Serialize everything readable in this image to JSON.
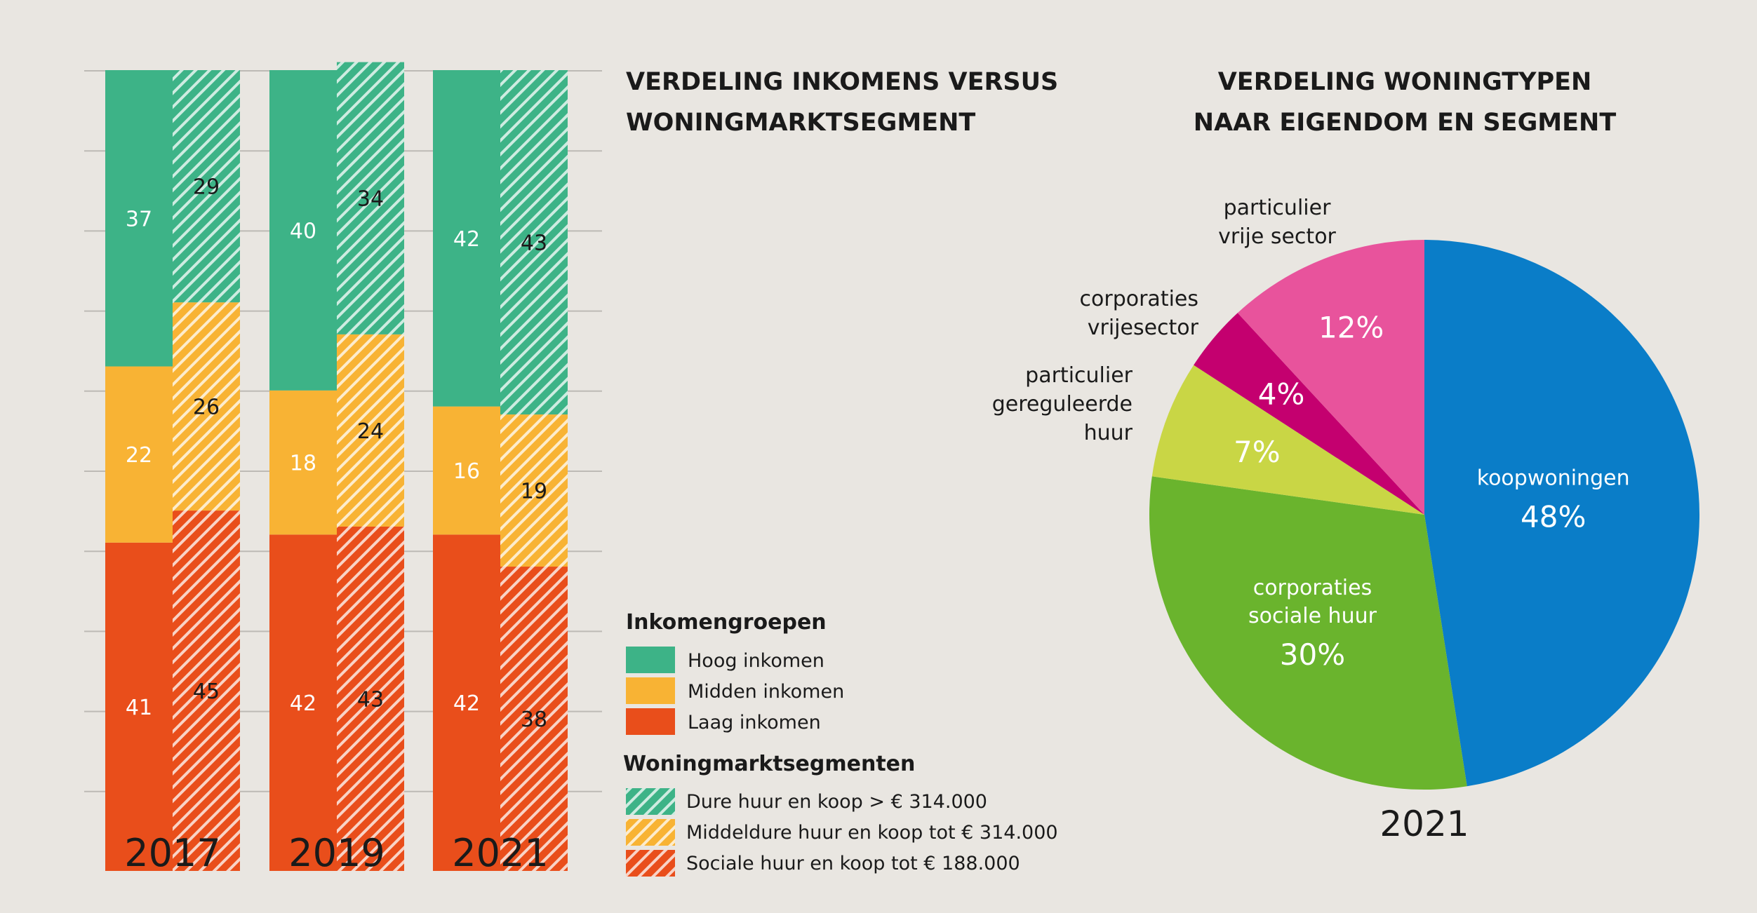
{
  "colors": {
    "background": "#e9e6e1",
    "hoog": "#3db387",
    "midden": "#f8b334",
    "laag": "#e94e1b",
    "grid": "#bdbab5",
    "koop": "#0a7dc8",
    "corp_sociaal": "#6ab42d",
    "part_gereguleerd": "#c9d645",
    "corp_vrije": "#c4006f",
    "part_vrije": "#e8539c"
  },
  "chart_data": [
    {
      "type": "bar",
      "title_lines": [
        "VERDELING INKOMENS VERSUS",
        "WONINGMARKTSEGMENT"
      ],
      "categories": [
        "2017",
        "2019",
        "2021"
      ],
      "stacked": true,
      "ylim": [
        0,
        100
      ],
      "grid": true,
      "groups": [
        {
          "name": "Inkomengroepen",
          "pattern": "solid",
          "series": [
            {
              "name": "Laag inkomen",
              "color_key": "laag",
              "values": [
                41,
                42,
                42
              ]
            },
            {
              "name": "Midden inkomen",
              "color_key": "midden",
              "values": [
                22,
                18,
                16
              ]
            },
            {
              "name": "Hoog inkomen",
              "color_key": "hoog",
              "values": [
                37,
                40,
                42
              ]
            }
          ]
        },
        {
          "name": "Woningmarktsegmenten",
          "pattern": "hatched",
          "series": [
            {
              "name": "Sociale huur en koop tot € 188.000",
              "color_key": "laag",
              "values": [
                45,
                43,
                38
              ]
            },
            {
              "name": "Middeldure huur en koop tot € 314.000",
              "color_key": "midden",
              "values": [
                26,
                24,
                19
              ]
            },
            {
              "name": "Dure huur en koop > € 314.000",
              "color_key": "hoog",
              "values": [
                29,
                34,
                43
              ]
            }
          ]
        }
      ],
      "legend": {
        "placement": "right",
        "inkomen_heading": "Inkomengroepen",
        "inkomen_items": [
          "Hoog inkomen",
          "Midden inkomen",
          "Laag inkomen"
        ],
        "segment_heading": "Woningmarktsegmenten",
        "segment_items": [
          "Dure huur en koop > € 314.000",
          "Middeldure huur en koop tot € 314.000",
          "Sociale huur en koop tot € 188.000"
        ]
      }
    },
    {
      "type": "pie",
      "title_lines": [
        "VERDELING WONINGTYPEN",
        "NAAR EIGENDOM EN SEGMENT"
      ],
      "year": "2021",
      "slices": [
        {
          "key": "koop",
          "label_lines": [
            "koopwoningen"
          ],
          "value": 48,
          "pct_label": "48%",
          "color_key": "koop",
          "label_inside": true
        },
        {
          "key": "corp_sociaal",
          "label_lines": [
            "corporaties",
            "sociale huur"
          ],
          "value": 30,
          "pct_label": "30%",
          "color_key": "corp_sociaal",
          "label_inside": true
        },
        {
          "key": "part_gereguleerd",
          "label_lines": [
            "particulier",
            "gereguleerde",
            "huur"
          ],
          "value": 7,
          "pct_label": "7%",
          "color_key": "part_gereguleerd",
          "label_inside": false
        },
        {
          "key": "corp_vrije",
          "label_lines": [
            "corporaties",
            "vrijesector"
          ],
          "value": 4,
          "pct_label": "4%",
          "color_key": "corp_vrije",
          "label_inside": false
        },
        {
          "key": "part_vrije",
          "label_lines": [
            "particulier",
            "vrije sector"
          ],
          "value": 12,
          "pct_label": "12%",
          "color_key": "part_vrije",
          "label_inside": false
        }
      ]
    }
  ]
}
